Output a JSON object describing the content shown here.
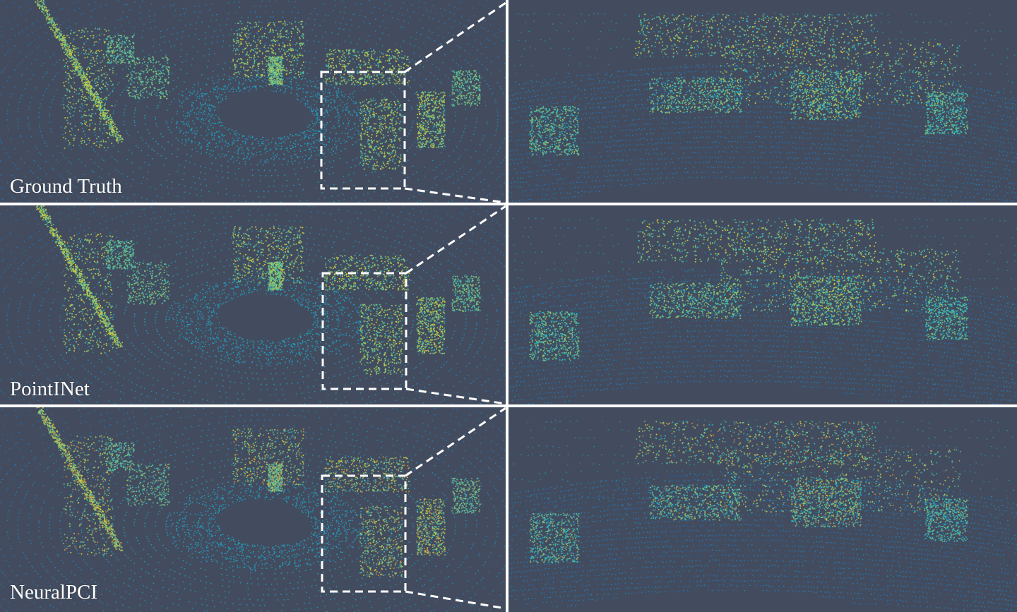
{
  "rows": [
    {
      "label": "Ground Truth",
      "palette": "ground-truth"
    },
    {
      "label": "PointINet",
      "palette": "pointinet"
    },
    {
      "label": "NeuralPCI",
      "palette": "neuralpci"
    }
  ],
  "colors": {
    "background": "#434c5e",
    "divider": "#ffffff",
    "zoom_box": "#ffffff",
    "point_low": "#1f5fb8",
    "point_mid": "#1fb8c8",
    "point_high": "#e8d22a",
    "point_hot": "#f08a2a"
  }
}
